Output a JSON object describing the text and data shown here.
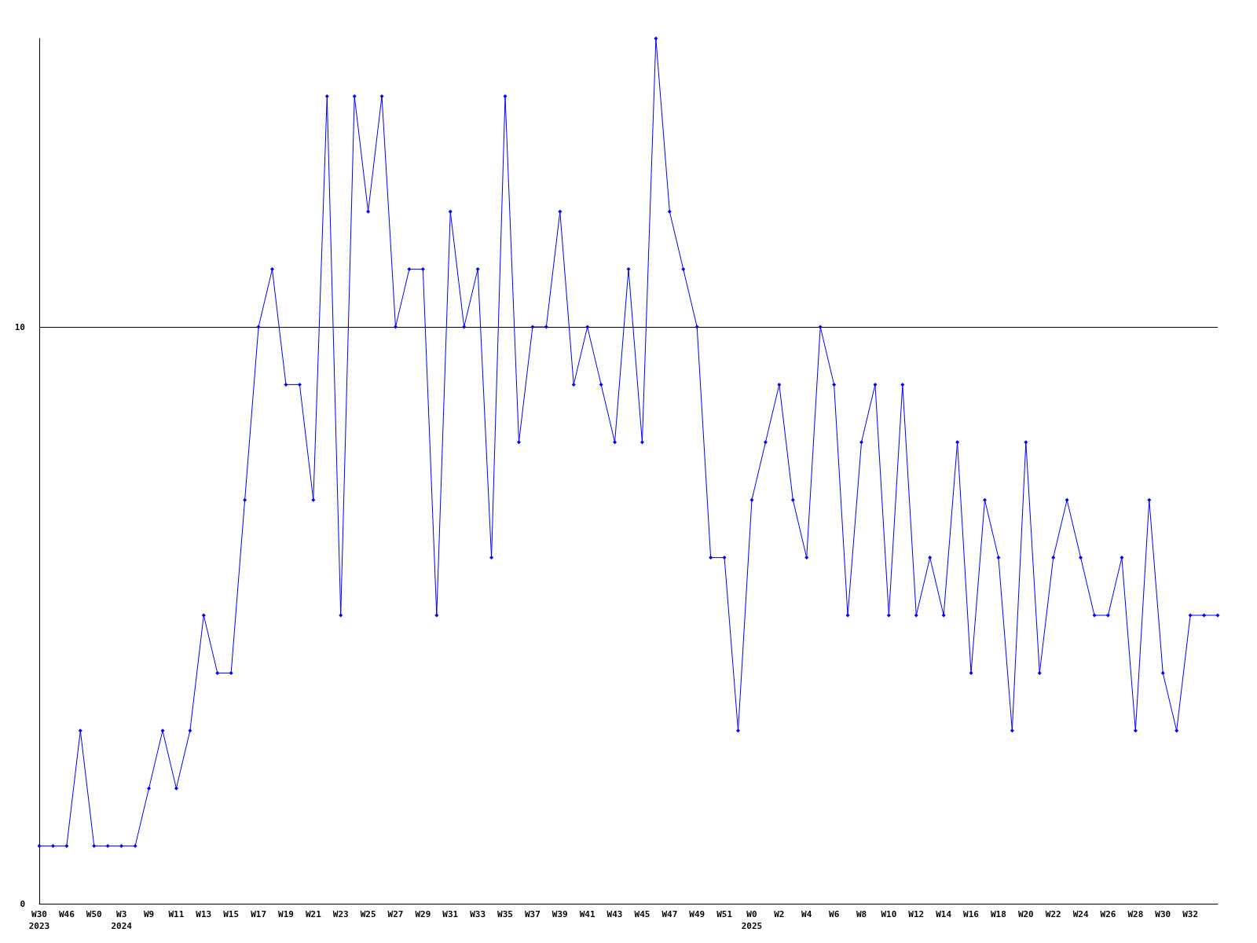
{
  "chart_data": {
    "type": "line",
    "categories": [
      "W30\n2023",
      null,
      "W46",
      null,
      "W50",
      null,
      "W3\n2024",
      null,
      "W9",
      null,
      "W11",
      null,
      "W13",
      null,
      "W15",
      null,
      "W17",
      null,
      "W19",
      null,
      "W21",
      null,
      "W23",
      null,
      "W25",
      null,
      "W27",
      null,
      "W29",
      null,
      "W31",
      null,
      "W33",
      null,
      "W35",
      null,
      "W37",
      null,
      "W39",
      null,
      "W41",
      null,
      "W43",
      null,
      "W45",
      null,
      "W47",
      null,
      "W49",
      null,
      "W51",
      null,
      "W0\n2025",
      null,
      "W2",
      null,
      "W4",
      null,
      "W6",
      null,
      "W8",
      null,
      "W10",
      null,
      "W12",
      null,
      "W14",
      null,
      "W16",
      null,
      "W18",
      null,
      "W20",
      null,
      "W22",
      null,
      "W24",
      null,
      "W26",
      null,
      "W28",
      null,
      "W30",
      null,
      "W32",
      null,
      null
    ],
    "series": [
      {
        "color": "#0000ff",
        "values": [
          1,
          1,
          1,
          3,
          1,
          1,
          1,
          1,
          2,
          3,
          2,
          3,
          5,
          4,
          4,
          7,
          10,
          11,
          9,
          9,
          7,
          14,
          5,
          14,
          12,
          14,
          10,
          11,
          11,
          5,
          12,
          10,
          11,
          6,
          14,
          8,
          10,
          10,
          12,
          9,
          10,
          9,
          8,
          11,
          8,
          15,
          12,
          11,
          10,
          6,
          6,
          3,
          7,
          8,
          9,
          7,
          6,
          10,
          9,
          5,
          8,
          9,
          5,
          9,
          5,
          6,
          5,
          8,
          4,
          7,
          6,
          3,
          8,
          4,
          6,
          7,
          6,
          5,
          5,
          6,
          3,
          7,
          4,
          3,
          5,
          5,
          5
        ]
      }
    ],
    "ylim": [
      0,
      15
    ],
    "yticks": [
      0,
      10
    ],
    "grid": "y",
    "marker": "diamond",
    "line_style": "solid"
  }
}
